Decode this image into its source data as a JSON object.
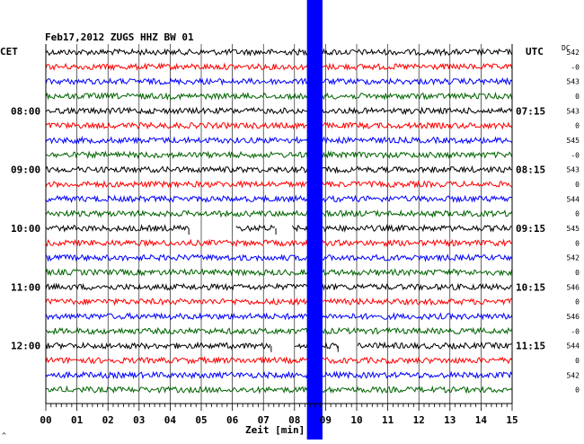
{
  "chart_data": {
    "type": "line",
    "title": "Feb17,2012   ZUGS HHZ BW 01",
    "left_axis_label": "CET",
    "right_axis_label": "UTC",
    "dc_label": "DC",
    "xlabel": "Zeit [min]",
    "xlim": [
      0,
      15
    ],
    "x_ticks": [
      "00",
      "01",
      "02",
      "03",
      "04",
      "05",
      "06",
      "07",
      "08",
      "09",
      "10",
      "11",
      "12",
      "13",
      "14",
      "15"
    ],
    "trace_count": 24,
    "trace_colors": [
      "#000000",
      "#ff0000",
      "#0000ff",
      "#006400"
    ],
    "cet_hour_labels": [
      {
        "row": 4,
        "text": "08:00"
      },
      {
        "row": 8,
        "text": "09:00"
      },
      {
        "row": 12,
        "text": "10:00"
      },
      {
        "row": 16,
        "text": "11:00"
      },
      {
        "row": 20,
        "text": "12:00"
      }
    ],
    "utc_hour_labels": [
      {
        "row": 4,
        "text": "07:15"
      },
      {
        "row": 8,
        "text": "08:15"
      },
      {
        "row": 12,
        "text": "09:15"
      },
      {
        "row": 16,
        "text": "10:15"
      },
      {
        "row": 20,
        "text": "11:15"
      }
    ],
    "dc_values": [
      "542",
      "-0",
      "543",
      "0",
      "543",
      "0",
      "545",
      "-0",
      "543",
      "0",
      "544",
      "0",
      "545",
      "0",
      "542",
      "0",
      "546",
      "0",
      "546",
      "-0",
      "544",
      "0",
      "542",
      "0"
    ],
    "highlight_band": {
      "x_start": 8.4,
      "x_end": 8.9,
      "color": "#0000ff"
    },
    "gaps": [
      {
        "row": 12,
        "x_start": 4.6,
        "x_end": 6.1
      },
      {
        "row": 12,
        "x_start": 7.4,
        "x_end": 7.9
      },
      {
        "row": 20,
        "x_start": 7.25,
        "x_end": 8.0
      },
      {
        "row": 20,
        "x_start": 9.4,
        "x_end": 10.0
      }
    ]
  },
  "footer_mark": "^"
}
